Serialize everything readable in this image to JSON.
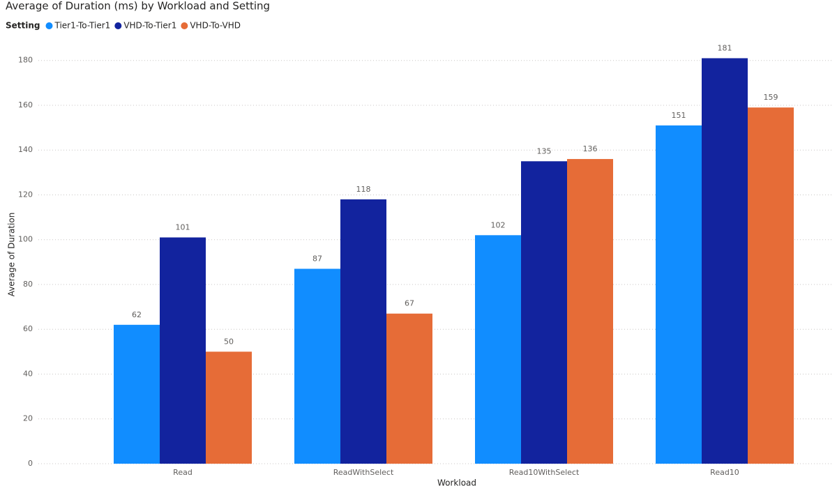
{
  "chart_data": {
    "type": "bar",
    "title": "Average of Duration (ms) by Workload and Setting",
    "legend_title": "Setting",
    "x_label": "Workload",
    "y_label": "Average of Duration",
    "categories": [
      "Read",
      "ReadWithSelect",
      "Read10WithSelect",
      "Read10"
    ],
    "series": [
      {
        "name": "Tier1-To-Tier1",
        "color": "#118DFF",
        "values": [
          62,
          87,
          102,
          151
        ]
      },
      {
        "name": "VHD-To-Tier1",
        "color": "#12239E",
        "values": [
          101,
          118,
          135,
          181
        ]
      },
      {
        "name": "VHD-To-VHD",
        "color": "#E66C37",
        "values": [
          50,
          67,
          136,
          159
        ]
      }
    ],
    "ylim": [
      0,
      188
    ],
    "yticks": [
      0,
      20,
      40,
      60,
      80,
      100,
      120,
      140,
      160,
      180
    ],
    "grid": true,
    "legend_position": "top-left"
  }
}
